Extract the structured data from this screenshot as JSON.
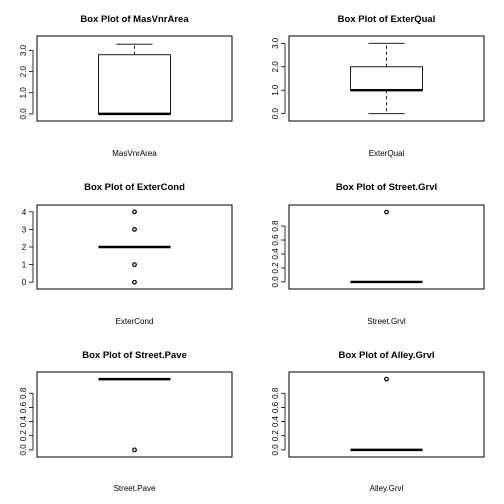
{
  "chart_data": [
    {
      "type": "box",
      "title": "Box Plot of  MasVnrArea",
      "xlabel": "MasVnrArea",
      "yticks": [
        "0.0",
        "1.0",
        "2.0",
        "3.0"
      ],
      "ylim": [
        -0.1,
        3.45
      ],
      "box": {
        "q1": 0.0,
        "median": 0.0,
        "q3": 2.8,
        "whisker_low": 0.0,
        "whisker_high": 3.3
      },
      "outliers": [],
      "y_ticks_rotated": true,
      "grid": false
    },
    {
      "type": "box",
      "title": "Box Plot of  ExterQual",
      "xlabel": "ExterQual",
      "yticks": [
        "0.0",
        "1.0",
        "2.0",
        "3.0"
      ],
      "ylim": [
        -0.1,
        3.1
      ],
      "box": {
        "q1": 1.0,
        "median": 1.0,
        "q3": 2.0,
        "whisker_low": 0.0,
        "whisker_high": 3.0
      },
      "outliers": [],
      "y_ticks_rotated": true,
      "grid": false
    },
    {
      "type": "box",
      "title": "Box Plot of  ExterCond",
      "xlabel": "ExterCond",
      "yticks": [
        "0",
        "1",
        "2",
        "3",
        "4"
      ],
      "ylim": [
        -0.1,
        4.1
      ],
      "box": {
        "q1": 2.0,
        "median": 2.0,
        "q3": 2.0,
        "whisker_low": 2.0,
        "whisker_high": 2.0
      },
      "outliers": [
        0,
        1,
        3,
        4
      ],
      "y_ticks_rotated": false,
      "grid": false
    },
    {
      "type": "box",
      "title": "Box Plot of  Street.Grvl",
      "xlabel": "Street.Grvl",
      "yticks": [
        "0.0",
        "0.2",
        "0.4",
        "0.6",
        "0.8"
      ],
      "ylim": [
        -0.03,
        1.03
      ],
      "box": {
        "q1": 0.0,
        "median": 0.0,
        "q3": 0.0,
        "whisker_low": 0.0,
        "whisker_high": 0.0
      },
      "outliers": [
        1
      ],
      "y_ticks_rotated": true,
      "grid": false
    },
    {
      "type": "box",
      "title": "Box Plot of  Street.Pave",
      "xlabel": "Street.Pave",
      "yticks": [
        "0.0",
        "0.2",
        "0.4",
        "0.6",
        "0.8"
      ],
      "ylim": [
        -0.03,
        1.03
      ],
      "box": {
        "q1": 1.0,
        "median": 1.0,
        "q3": 1.0,
        "whisker_low": 1.0,
        "whisker_high": 1.0
      },
      "outliers": [
        0
      ],
      "y_ticks_rotated": true,
      "grid": false
    },
    {
      "type": "box",
      "title": "Box Plot of  Alley.Grvl",
      "xlabel": "Alley.Grvl",
      "yticks": [
        "0.0",
        "0.2",
        "0.4",
        "0.6",
        "0.8"
      ],
      "ylim": [
        -0.03,
        1.03
      ],
      "box": {
        "q1": 0.0,
        "median": 0.0,
        "q3": 0.0,
        "whisker_low": 0.0,
        "whisker_high": 0.0
      },
      "outliers": [
        1
      ],
      "y_ticks_rotated": true,
      "grid": false
    }
  ]
}
